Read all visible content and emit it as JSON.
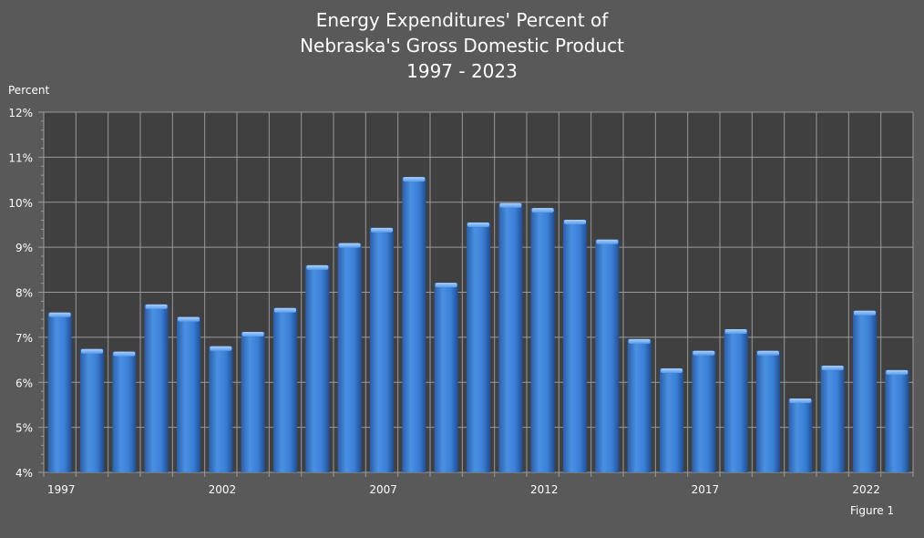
{
  "chart_data": {
    "type": "bar",
    "title_lines": [
      "Energy Expenditures' Percent of",
      "Nebraska's Gross Domestic Product",
      "1997 - 2023"
    ],
    "ylabel": "Percent",
    "xlabel": "",
    "footnote": "Figure 1",
    "ylim": [
      4,
      12
    ],
    "yticks": [
      "4%",
      "5%",
      "6%",
      "7%",
      "8%",
      "9%",
      "10%",
      "11%",
      "12%"
    ],
    "xtick_labels": [
      "1997",
      "2002",
      "2007",
      "2012",
      "2017",
      "2022"
    ],
    "categories": [
      "1997",
      "1998",
      "1999",
      "2000",
      "2001",
      "2002",
      "2003",
      "2004",
      "2005",
      "2006",
      "2007",
      "2008",
      "2009",
      "2010",
      "2011",
      "2012",
      "2013",
      "2014",
      "2015",
      "2016",
      "2017",
      "2018",
      "2019",
      "2020",
      "2021",
      "2022",
      "2023"
    ],
    "values": [
      7.55,
      6.74,
      6.68,
      7.73,
      7.45,
      6.8,
      7.12,
      7.65,
      8.6,
      9.09,
      9.43,
      10.56,
      8.21,
      9.55,
      9.98,
      9.87,
      9.61,
      9.17,
      6.96,
      6.31,
      6.7,
      7.18,
      6.7,
      5.64,
      6.37,
      7.59,
      6.27
    ],
    "bar_color": "#3a7fd5",
    "grid": true
  }
}
